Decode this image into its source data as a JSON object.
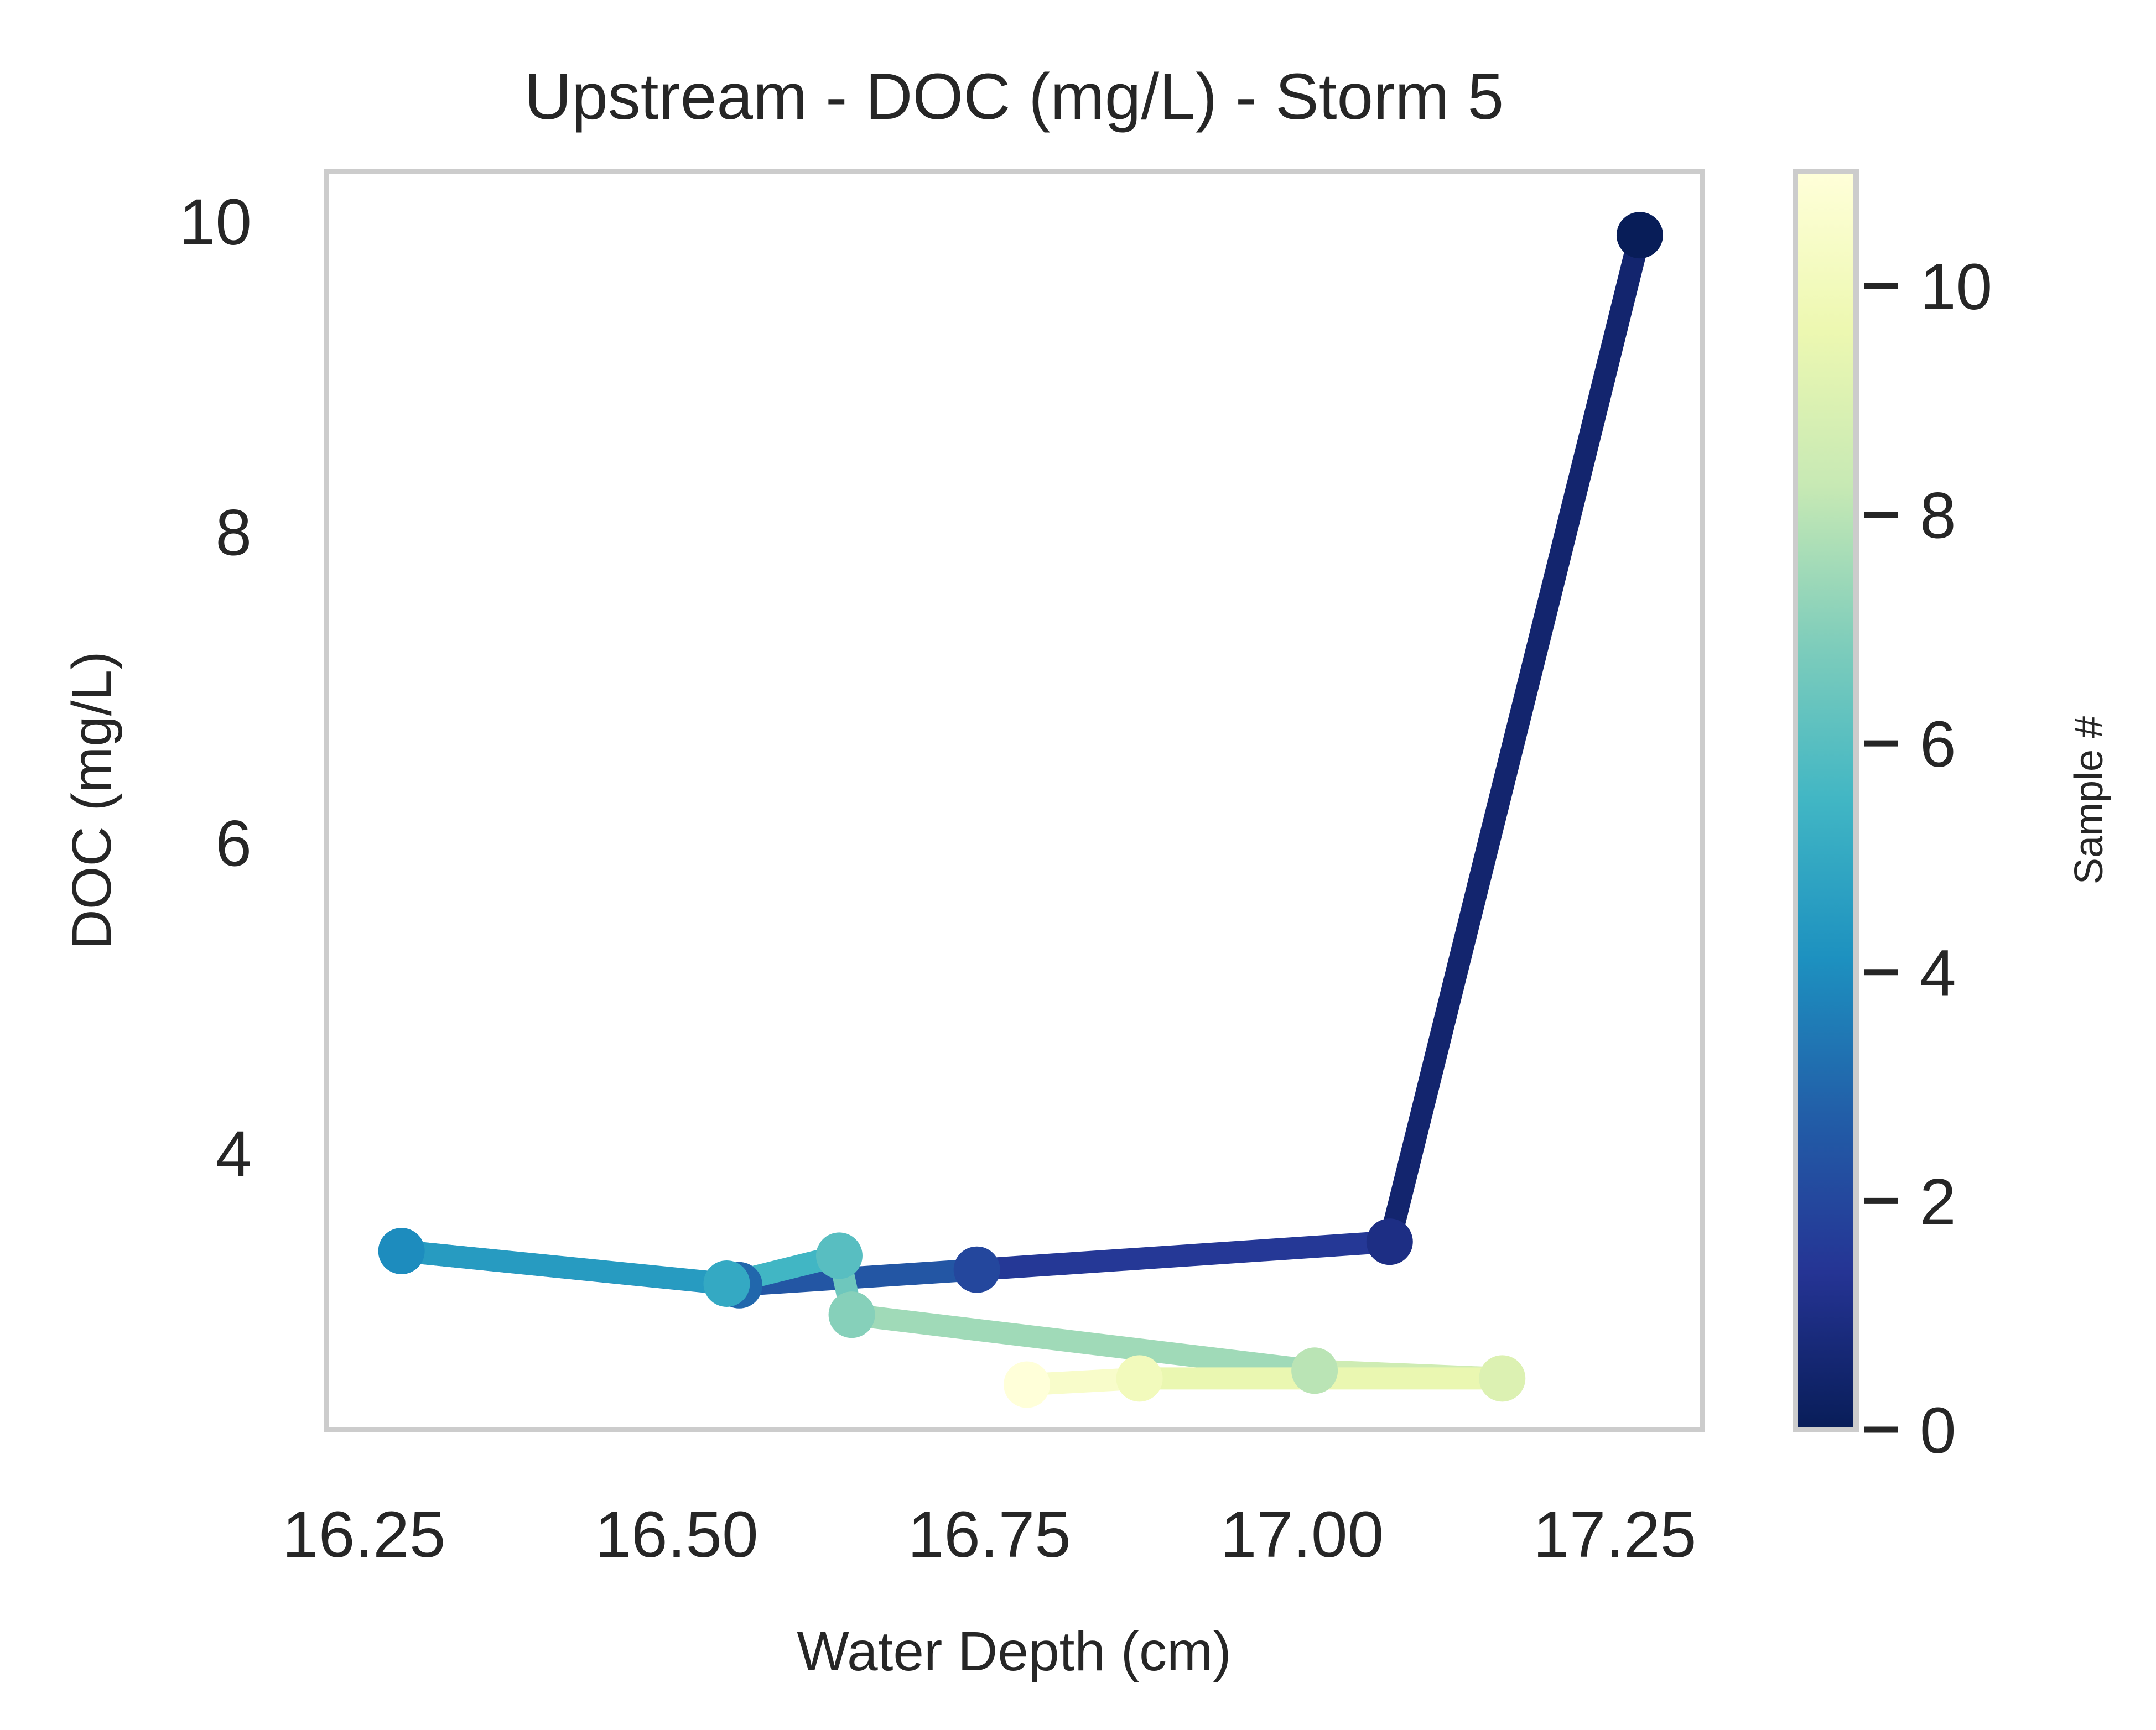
{
  "chart_data": {
    "type": "line",
    "title": "Upstream - DOC (mg/L) - Storm 5",
    "xlabel": "Water Depth (cm)",
    "ylabel": "DOC (mg/L)",
    "xlim": [
      16.22,
      17.32
    ],
    "ylim": [
      2.22,
      10.32
    ],
    "xticks": [
      16.25,
      16.5,
      16.75,
      17.0,
      17.25
    ],
    "xtick_labels": [
      "16.25",
      "16.50",
      "16.75",
      "17.00",
      "17.25"
    ],
    "yticks": [
      4,
      6,
      8,
      10
    ],
    "ytick_labels": [
      "4",
      "6",
      "8",
      "10"
    ],
    "grid": false,
    "series": [
      {
        "color_by": "sample",
        "points": [
          {
            "sample": 0,
            "x": 17.27,
            "y": 9.91
          },
          {
            "sample": 1,
            "x": 17.07,
            "y": 3.43
          },
          {
            "sample": 2,
            "x": 16.74,
            "y": 3.25
          },
          {
            "sample": 3,
            "x": 16.55,
            "y": 3.15
          },
          {
            "sample": 4,
            "x": 16.28,
            "y": 3.37
          },
          {
            "sample": 5,
            "x": 16.54,
            "y": 3.16
          },
          {
            "sample": 6,
            "x": 16.63,
            "y": 3.34
          },
          {
            "sample": 7,
            "x": 16.64,
            "y": 2.96
          },
          {
            "sample": 8,
            "x": 17.01,
            "y": 2.6
          },
          {
            "sample": 9,
            "x": 17.16,
            "y": 2.55
          },
          {
            "sample": 10,
            "x": 16.87,
            "y": 2.55
          },
          {
            "sample": 11,
            "x": 16.78,
            "y": 2.51
          }
        ]
      }
    ],
    "colorbar": {
      "label": "Sample #",
      "colormap": "YlGnBu_r",
      "range": [
        0,
        11
      ],
      "ticks": [
        0,
        2,
        4,
        6,
        8,
        10
      ],
      "tick_labels": [
        "0",
        "2",
        "4",
        "6",
        "8",
        "10"
      ],
      "stops": [
        "#081d58",
        "#253494",
        "#225ea8",
        "#1d91c0",
        "#41b6c4",
        "#7fcdbb",
        "#c7e9b4",
        "#edf8b1",
        "#ffffd9"
      ]
    },
    "colors": {
      "frame": "#cccccc",
      "text": "#262626",
      "background": "#ffffff"
    }
  }
}
